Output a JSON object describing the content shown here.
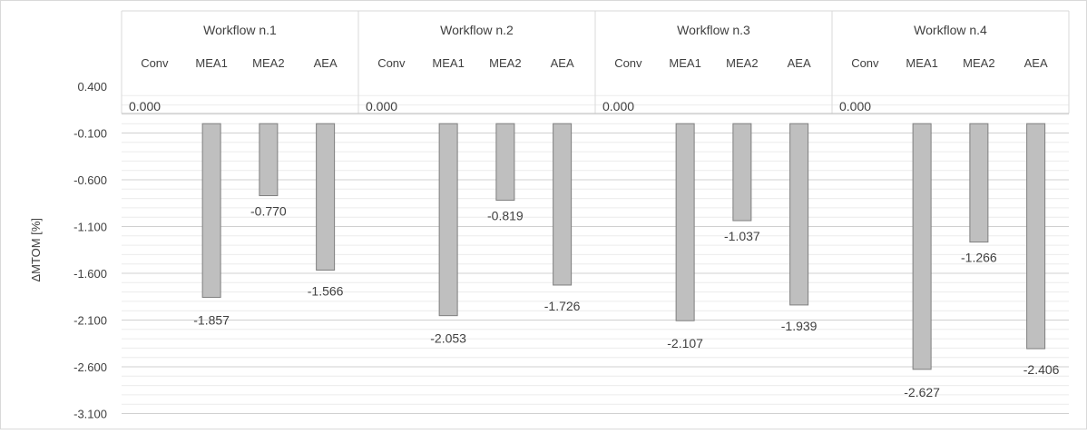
{
  "chart_data": {
    "type": "bar",
    "ylabel": "ΔMTOM [%]",
    "ylim": [
      -3.1,
      0.4
    ],
    "yticks": [
      "0.400",
      "-0.100",
      "-0.600",
      "-1.100",
      "-1.600",
      "-2.100",
      "-2.600",
      "-3.100"
    ],
    "ytick_values": [
      0.4,
      -0.1,
      -0.6,
      -1.1,
      -1.6,
      -2.1,
      -2.6,
      -3.1
    ],
    "minor_grid_step": 0.1,
    "bar_color": "#bfbfbf",
    "bar_edge": "#7f7f7f",
    "groups": [
      {
        "name": "Workflow n.1",
        "categories": [
          "Conv",
          "MEA1",
          "MEA2",
          "AEA"
        ],
        "values": [
          0.0,
          -1.857,
          -0.77,
          -1.566
        ],
        "labels": [
          "0.000",
          "-1.857",
          "-0.770",
          "-1.566"
        ]
      },
      {
        "name": "Workflow n.2",
        "categories": [
          "Conv",
          "MEA1",
          "MEA2",
          "AEA"
        ],
        "values": [
          0.0,
          -2.053,
          -0.819,
          -1.726
        ],
        "labels": [
          "0.000",
          "-2.053",
          "-0.819",
          "-1.726"
        ]
      },
      {
        "name": "Workflow n.3",
        "categories": [
          "Conv",
          "MEA1",
          "MEA2",
          "AEA"
        ],
        "values": [
          0.0,
          -2.107,
          -1.037,
          -1.939
        ],
        "labels": [
          "0.000",
          "-2.107",
          "-1.037",
          "-1.939"
        ]
      },
      {
        "name": "Workflow n.4",
        "categories": [
          "Conv",
          "MEA1",
          "MEA2",
          "AEA"
        ],
        "values": [
          0.0,
          -2.627,
          -1.266,
          -2.406
        ],
        "labels": [
          "0.000",
          "-2.627",
          "-1.266",
          "-2.406"
        ]
      }
    ]
  }
}
